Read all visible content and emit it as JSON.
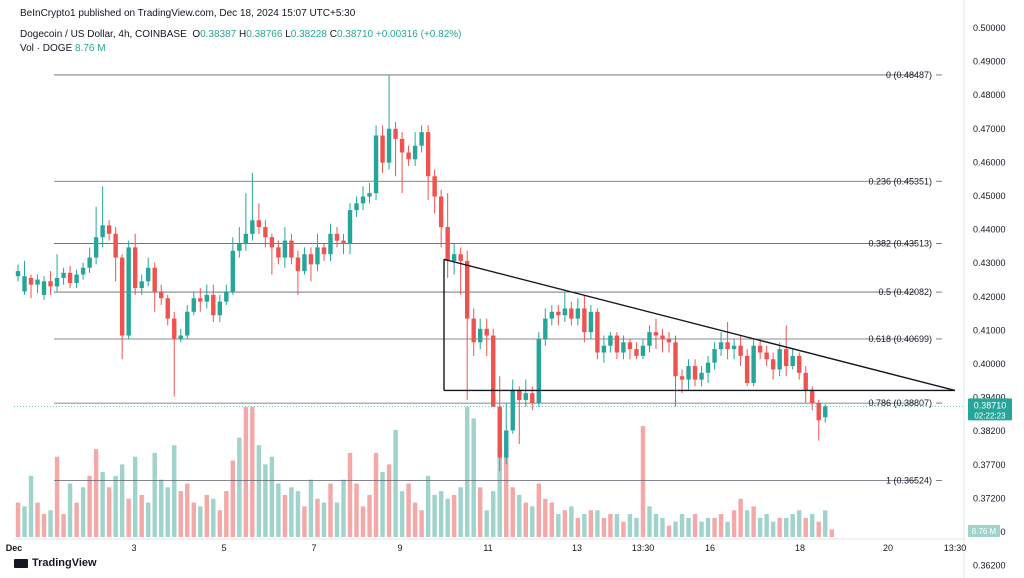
{
  "publisher_line": "BeInCrypto1 published on TradingView.com, Dec 18, 2024 15:07 UTC+5:30",
  "legend": {
    "symbol": "Dogecoin / US Dollar, 4h, COINBASE",
    "open_label": "O",
    "open": "0.38387",
    "high_label": "H",
    "high": "0.38766",
    "low_label": "L",
    "low": "0.38228",
    "close_label": "C",
    "close": "0.38710",
    "change": "+0.00316 (+0.82%)",
    "volume_label": "Vol · DOGE",
    "volume": "8.76 M"
  },
  "brand": "TradingView",
  "colors": {
    "up": "#26a69a",
    "down": "#ef5350",
    "up_volume": "#9fd3cc",
    "down_volume": "#f2a9a7",
    "line": "#131722"
  },
  "chart_data": {
    "type": "candlestick",
    "y_axis_ticks": [
      "0.50000",
      "0.49000",
      "0.48000",
      "0.47000",
      "0.46000",
      "0.45000",
      "0.44000",
      "0.43000",
      "0.42000",
      "0.41000",
      "0.40000",
      "0.39400",
      "0.38200",
      "0.37700",
      "0.37200",
      "0.36700",
      "0.36200"
    ],
    "x_axis_labels": [
      {
        "label": "Dec",
        "t": 14
      },
      {
        "label": "3",
        "t": 134
      },
      {
        "label": "5",
        "t": 224
      },
      {
        "label": "7",
        "t": 314
      },
      {
        "label": "9",
        "t": 400
      },
      {
        "label": "11",
        "t": 488
      },
      {
        "label": "13",
        "t": 577
      },
      {
        "label": "13:30",
        "t": 643
      },
      {
        "label": "16",
        "t": 710
      },
      {
        "label": "18",
        "t": 800
      },
      {
        "label": "20",
        "t": 888
      },
      {
        "label": "13:30",
        "t": 955
      }
    ],
    "price_badges": [
      {
        "value": "0.38710",
        "sub": "02:22:23",
        "price": 0.3871
      },
      {
        "value": "8.76 M",
        "price": "volume"
      }
    ],
    "fibonacci_levels": [
      {
        "label": "0 (0.48487)",
        "price": 0.48487
      },
      {
        "label": "0.236 (0.45351)",
        "price": 0.45351
      },
      {
        "label": "0.382 (0.43513)",
        "price": 0.43513
      },
      {
        "label": "0.5 (0.42082)",
        "price": 0.42082
      },
      {
        "label": "0.618 (0.40699)",
        "price": 0.40699
      },
      {
        "label": "0.786 (0.38807)",
        "price": 0.38807
      },
      {
        "label": "1 (0.36524)",
        "price": 0.36524
      }
    ],
    "trendlines": [
      {
        "name": "descending-resistance",
        "from": {
          "t": 444,
          "price": 0.4305
        },
        "to": {
          "t": 955,
          "price": 0.3918
        }
      },
      {
        "name": "horizontal-support",
        "from": {
          "t": 444,
          "price": 0.3918
        },
        "to": {
          "t": 955,
          "price": 0.3918
        }
      },
      {
        "name": "left-vertical",
        "from": {
          "t": 444,
          "price": 0.4305
        },
        "to": {
          "t": 444,
          "price": 0.3918
        }
      }
    ],
    "candles": [
      [
        0.4255,
        0.427,
        0.424,
        0.429
      ],
      [
        0.421,
        0.4255,
        0.42,
        0.43
      ],
      [
        0.425,
        0.423,
        0.419,
        0.426
      ],
      [
        0.423,
        0.4245,
        0.4205,
        0.426
      ],
      [
        0.42,
        0.424,
        0.4185,
        0.4255
      ],
      [
        0.424,
        0.4225,
        0.42,
        0.427
      ],
      [
        0.4225,
        0.425,
        0.421,
        0.432
      ],
      [
        0.425,
        0.4265,
        0.423,
        0.428
      ],
      [
        0.4265,
        0.4235,
        0.422,
        0.4285
      ],
      [
        0.4235,
        0.426,
        0.422,
        0.4275
      ],
      [
        0.426,
        0.428,
        0.4245,
        0.4295
      ],
      [
        0.428,
        0.431,
        0.4265,
        0.434
      ],
      [
        0.431,
        0.437,
        0.429,
        0.446
      ],
      [
        0.437,
        0.4405,
        0.434,
        0.452
      ],
      [
        0.4405,
        0.438,
        0.436,
        0.442
      ],
      [
        0.438,
        0.431,
        0.424,
        0.44
      ],
      [
        0.431,
        0.408,
        0.401,
        0.432
      ],
      [
        0.408,
        0.434,
        0.407,
        0.436
      ],
      [
        0.434,
        0.422,
        0.42,
        0.438
      ],
      [
        0.422,
        0.424,
        0.42,
        0.426
      ],
      [
        0.424,
        0.428,
        0.4225,
        0.431
      ],
      [
        0.428,
        0.421,
        0.415,
        0.4295
      ],
      [
        0.421,
        0.419,
        0.417,
        0.423
      ],
      [
        0.419,
        0.413,
        0.411,
        0.42
      ],
      [
        0.413,
        0.407,
        0.39,
        0.415
      ],
      [
        0.407,
        0.408,
        0.406,
        0.41
      ],
      [
        0.408,
        0.415,
        0.407,
        0.417
      ],
      [
        0.415,
        0.419,
        0.414,
        0.421
      ],
      [
        0.419,
        0.418,
        0.415,
        0.422
      ],
      [
        0.418,
        0.42,
        0.416,
        0.423
      ],
      [
        0.42,
        0.414,
        0.412,
        0.423
      ],
      [
        0.414,
        0.418,
        0.412,
        0.42
      ],
      [
        0.418,
        0.421,
        0.417,
        0.423
      ],
      [
        0.421,
        0.433,
        0.42,
        0.437
      ],
      [
        0.433,
        0.435,
        0.431,
        0.44
      ],
      [
        0.435,
        0.438,
        0.433,
        0.45
      ],
      [
        0.438,
        0.442,
        0.436,
        0.456
      ],
      [
        0.442,
        0.44,
        0.438,
        0.447
      ],
      [
        0.44,
        0.437,
        0.434,
        0.442
      ],
      [
        0.437,
        0.434,
        0.426,
        0.438
      ],
      [
        0.434,
        0.431,
        0.429,
        0.436
      ],
      [
        0.431,
        0.436,
        0.428,
        0.44
      ],
      [
        0.436,
        0.431,
        0.429,
        0.438
      ],
      [
        0.431,
        0.427,
        0.42,
        0.433
      ],
      [
        0.427,
        0.432,
        0.426,
        0.434
      ],
      [
        0.432,
        0.429,
        0.424,
        0.434
      ],
      [
        0.429,
        0.434,
        0.427,
        0.438
      ],
      [
        0.434,
        0.432,
        0.43,
        0.435
      ],
      [
        0.432,
        0.438,
        0.43,
        0.441
      ],
      [
        0.438,
        0.436,
        0.434,
        0.44
      ],
      [
        0.436,
        0.435,
        0.432,
        0.438
      ],
      [
        0.435,
        0.445,
        0.432,
        0.447
      ],
      [
        0.445,
        0.447,
        0.443,
        0.449
      ],
      [
        0.447,
        0.449,
        0.445,
        0.452
      ],
      [
        0.449,
        0.45,
        0.447,
        0.453
      ],
      [
        0.45,
        0.467,
        0.448,
        0.47
      ],
      [
        0.467,
        0.459,
        0.456,
        0.47
      ],
      [
        0.459,
        0.469,
        0.457,
        0.485
      ],
      [
        0.469,
        0.466,
        0.455,
        0.471
      ],
      [
        0.466,
        0.462,
        0.45,
        0.468
      ],
      [
        0.462,
        0.46,
        0.458,
        0.464
      ],
      [
        0.46,
        0.464,
        0.458,
        0.468
      ],
      [
        0.464,
        0.468,
        0.462,
        0.47
      ],
      [
        0.468,
        0.455,
        0.448,
        0.47
      ],
      [
        0.455,
        0.449,
        0.444,
        0.457
      ],
      [
        0.449,
        0.44,
        0.434,
        0.451
      ],
      [
        0.44,
        0.43,
        0.425,
        0.45
      ],
      [
        0.43,
        0.432,
        0.426,
        0.435
      ],
      [
        0.432,
        0.43,
        0.42,
        0.434
      ],
      [
        0.43,
        0.413,
        0.389,
        0.433
      ],
      [
        0.413,
        0.406,
        0.402,
        0.416
      ],
      [
        0.406,
        0.41,
        0.404,
        0.413
      ],
      [
        0.41,
        0.408,
        0.402,
        0.413
      ],
      [
        0.408,
        0.387,
        0.387,
        0.41
      ],
      [
        0.387,
        0.372,
        0.368,
        0.396
      ],
      [
        0.372,
        0.38,
        0.37,
        0.388
      ],
      [
        0.38,
        0.392,
        0.379,
        0.395
      ],
      [
        0.392,
        0.389,
        0.376,
        0.393
      ],
      [
        0.389,
        0.391,
        0.387,
        0.395
      ],
      [
        0.391,
        0.388,
        0.386,
        0.393
      ],
      [
        0.388,
        0.407,
        0.387,
        0.409
      ],
      [
        0.407,
        0.413,
        0.405,
        0.416
      ],
      [
        0.413,
        0.415,
        0.411,
        0.417
      ],
      [
        0.415,
        0.414,
        0.411,
        0.417
      ],
      [
        0.414,
        0.416,
        0.412,
        0.421
      ],
      [
        0.416,
        0.413,
        0.411,
        0.418
      ],
      [
        0.413,
        0.416,
        0.411,
        0.419
      ],
      [
        0.416,
        0.409,
        0.406,
        0.42
      ],
      [
        0.409,
        0.415,
        0.407,
        0.417
      ],
      [
        0.415,
        0.403,
        0.401,
        0.416
      ],
      [
        0.403,
        0.405,
        0.4,
        0.408
      ],
      [
        0.405,
        0.408,
        0.403,
        0.409
      ],
      [
        0.408,
        0.403,
        0.401,
        0.409
      ],
      [
        0.403,
        0.406,
        0.401,
        0.408
      ],
      [
        0.406,
        0.404,
        0.401,
        0.407
      ],
      [
        0.404,
        0.402,
        0.401,
        0.406
      ],
      [
        0.402,
        0.405,
        0.401,
        0.407
      ],
      [
        0.405,
        0.409,
        0.403,
        0.411
      ],
      [
        0.409,
        0.408,
        0.404,
        0.413
      ],
      [
        0.408,
        0.407,
        0.403,
        0.41
      ],
      [
        0.407,
        0.406,
        0.403,
        0.409
      ],
      [
        0.406,
        0.396,
        0.387,
        0.408
      ],
      [
        0.396,
        0.395,
        0.391,
        0.398
      ],
      [
        0.395,
        0.399,
        0.392,
        0.401
      ],
      [
        0.399,
        0.395,
        0.393,
        0.401
      ],
      [
        0.395,
        0.397,
        0.393,
        0.399
      ],
      [
        0.397,
        0.4,
        0.394,
        0.402
      ],
      [
        0.4,
        0.404,
        0.398,
        0.406
      ],
      [
        0.404,
        0.406,
        0.402,
        0.409
      ],
      [
        0.406,
        0.404,
        0.401,
        0.412
      ],
      [
        0.404,
        0.405,
        0.401,
        0.407
      ],
      [
        0.405,
        0.402,
        0.399,
        0.408
      ],
      [
        0.402,
        0.394,
        0.393,
        0.404
      ],
      [
        0.394,
        0.405,
        0.393,
        0.407
      ],
      [
        0.405,
        0.403,
        0.401,
        0.407
      ],
      [
        0.403,
        0.401,
        0.399,
        0.405
      ],
      [
        0.401,
        0.398,
        0.395,
        0.403
      ],
      [
        0.398,
        0.404,
        0.396,
        0.406
      ],
      [
        0.404,
        0.399,
        0.396,
        0.411
      ],
      [
        0.399,
        0.402,
        0.398,
        0.404
      ],
      [
        0.402,
        0.397,
        0.395,
        0.403
      ],
      [
        0.397,
        0.392,
        0.388,
        0.399
      ],
      [
        0.392,
        0.388,
        0.386,
        0.393
      ],
      [
        0.388,
        0.383,
        0.377,
        0.389
      ],
      [
        0.3839,
        0.3871,
        0.3823,
        0.3877
      ]
    ],
    "volumes": [
      [
        0.9,
        0
      ],
      [
        0.8,
        1
      ],
      [
        1.6,
        1
      ],
      [
        0.9,
        0
      ],
      [
        0.6,
        0
      ],
      [
        0.7,
        1
      ],
      [
        2.1,
        0
      ],
      [
        0.6,
        0
      ],
      [
        1.4,
        1
      ],
      [
        0.9,
        0
      ],
      [
        1.3,
        1
      ],
      [
        1.6,
        0
      ],
      [
        2.3,
        0
      ],
      [
        1.7,
        1
      ],
      [
        1.3,
        0
      ],
      [
        1.6,
        1
      ],
      [
        1.9,
        1
      ],
      [
        1.0,
        0
      ],
      [
        2.1,
        1
      ],
      [
        1.1,
        0
      ],
      [
        0.9,
        1
      ],
      [
        2.2,
        1
      ],
      [
        1.5,
        1
      ],
      [
        1.3,
        1
      ],
      [
        2.4,
        1
      ],
      [
        1.2,
        0
      ],
      [
        1.4,
        0
      ],
      [
        0.9,
        0
      ],
      [
        0.8,
        1
      ],
      [
        1.1,
        0
      ],
      [
        1.0,
        1
      ],
      [
        0.7,
        0
      ],
      [
        1.2,
        0
      ],
      [
        2.0,
        0
      ],
      [
        2.6,
        1
      ],
      [
        3.4,
        0
      ],
      [
        3.4,
        0
      ],
      [
        2.4,
        1
      ],
      [
        1.9,
        1
      ],
      [
        2.1,
        1
      ],
      [
        1.4,
        1
      ],
      [
        1.1,
        0
      ],
      [
        1.3,
        1
      ],
      [
        1.2,
        1
      ],
      [
        0.8,
        0
      ],
      [
        1.5,
        1
      ],
      [
        1.0,
        0
      ],
      [
        0.9,
        1
      ],
      [
        1.4,
        0
      ],
      [
        0.9,
        1
      ],
      [
        1.5,
        1
      ],
      [
        2.2,
        0
      ],
      [
        1.4,
        0
      ],
      [
        0.8,
        0
      ],
      [
        1.1,
        0
      ],
      [
        2.2,
        0
      ],
      [
        1.7,
        1
      ],
      [
        1.9,
        0
      ],
      [
        2.8,
        1
      ],
      [
        1.2,
        1
      ],
      [
        1.4,
        0
      ],
      [
        0.9,
        0
      ],
      [
        0.7,
        0
      ],
      [
        1.6,
        1
      ],
      [
        1.1,
        1
      ],
      [
        1.2,
        1
      ],
      [
        1.0,
        1
      ],
      [
        1.1,
        0
      ],
      [
        1.3,
        1
      ],
      [
        3.4,
        1
      ],
      [
        3.1,
        1
      ],
      [
        1.3,
        0
      ],
      [
        0.7,
        1
      ],
      [
        1.2,
        1
      ],
      [
        2.4,
        1
      ],
      [
        2.2,
        0
      ],
      [
        1.3,
        0
      ],
      [
        1.1,
        1
      ],
      [
        0.9,
        0
      ],
      [
        0.8,
        1
      ],
      [
        1.4,
        0
      ],
      [
        1.0,
        0
      ],
      [
        0.9,
        0
      ],
      [
        0.6,
        1
      ],
      [
        0.7,
        0
      ],
      [
        0.8,
        1
      ],
      [
        0.5,
        0
      ],
      [
        0.6,
        1
      ],
      [
        0.7,
        0
      ],
      [
        0.7,
        1
      ],
      [
        0.5,
        0
      ],
      [
        0.6,
        0
      ],
      [
        0.6,
        1
      ],
      [
        0.4,
        0
      ],
      [
        0.6,
        1
      ],
      [
        0.5,
        1
      ],
      [
        2.9,
        0
      ],
      [
        0.8,
        1
      ],
      [
        0.6,
        1
      ],
      [
        0.5,
        1
      ],
      [
        0.3,
        0
      ],
      [
        0.4,
        1
      ],
      [
        0.6,
        1
      ],
      [
        0.5,
        1
      ],
      [
        0.6,
        0
      ],
      [
        0.4,
        1
      ],
      [
        0.5,
        1
      ],
      [
        0.5,
        0
      ],
      [
        0.6,
        0
      ],
      [
        0.4,
        1
      ],
      [
        0.7,
        0
      ],
      [
        1.0,
        0
      ],
      [
        0.7,
        1
      ],
      [
        0.8,
        0
      ],
      [
        0.5,
        1
      ],
      [
        0.6,
        1
      ],
      [
        0.4,
        1
      ],
      [
        0.5,
        0
      ],
      [
        0.5,
        1
      ],
      [
        0.6,
        1
      ],
      [
        0.7,
        1
      ],
      [
        0.5,
        0
      ],
      [
        0.6,
        1
      ],
      [
        0.4,
        0
      ],
      [
        0.7,
        1
      ],
      [
        0.2,
        0
      ]
    ]
  }
}
